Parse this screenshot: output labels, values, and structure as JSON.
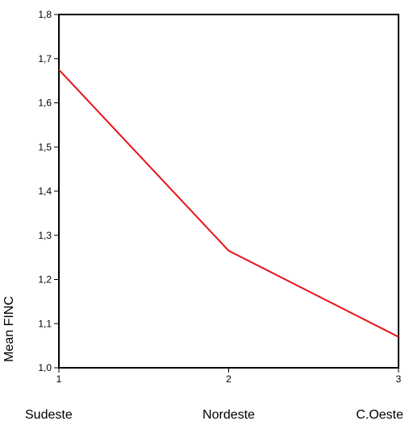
{
  "chart_data": {
    "type": "line",
    "x": [
      1,
      2,
      3
    ],
    "x_tick_labels": [
      "1",
      "2",
      "3"
    ],
    "categories": [
      "Sudeste",
      "Nordeste",
      "C.Oeste"
    ],
    "series": [
      {
        "values": [
          1.675,
          1.265,
          1.07
        ],
        "color": "#e8141b"
      }
    ],
    "ylabel": "Mean FINC",
    "xlim": [
      1,
      3
    ],
    "ylim": [
      1.0,
      1.8
    ],
    "y_ticks": [
      "1,0",
      "1,1",
      "1,2",
      "1,3",
      "1,4",
      "1,5",
      "1,6",
      "1,7",
      "1,8"
    ],
    "grid": false
  }
}
